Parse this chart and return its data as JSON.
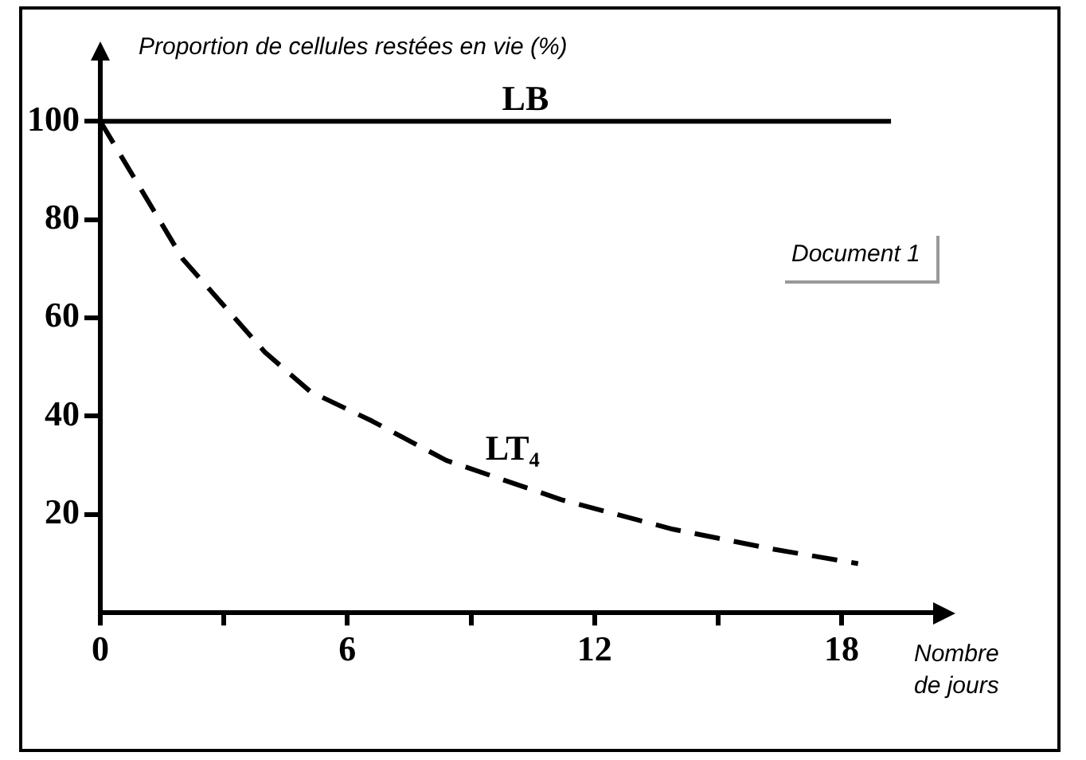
{
  "chart_data": {
    "type": "line",
    "ylabel": "Proportion de cellules restées en vie (%)",
    "xlabel": "Nombre de jours",
    "annotations": [
      "Document 1"
    ],
    "xlim": [
      0,
      20.3
    ],
    "xticks": [
      0,
      {
        "value": 3,
        "label": null
      },
      6,
      {
        "value": 9,
        "label": null
      },
      12,
      {
        "value": 15,
        "label": null
      },
      18
    ],
    "ylim": [
      0,
      113
    ],
    "yticks": [
      20,
      40,
      60,
      80,
      100
    ],
    "grid": false,
    "legend": false,
    "marker": "none",
    "series": [
      {
        "name": "LB",
        "color": "#000000",
        "line_style": "solid",
        "x": [
          0,
          19.2
        ],
        "values": [
          100,
          100
        ]
      },
      {
        "name": "LT₄",
        "color": "#000000",
        "line_style": "dashed",
        "x": [
          0,
          1,
          2,
          4,
          5.1,
          6.6,
          8.4,
          11.2,
          13.9,
          16.3,
          18.4
        ],
        "values": [
          100,
          86,
          72,
          53,
          45,
          39,
          31,
          23,
          17,
          13,
          10
        ]
      }
    ]
  }
}
